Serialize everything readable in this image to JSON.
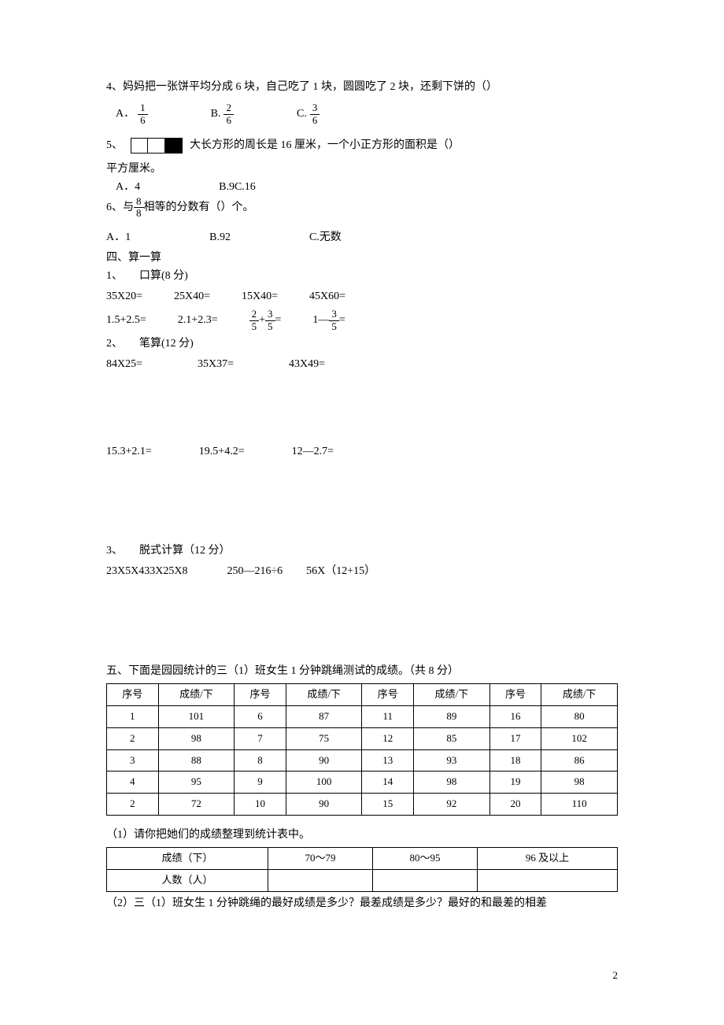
{
  "q4": {
    "text": "4、妈妈把一张饼平均分成 6 块，自己吃了 1 块，圆圆吃了 2 块，还剩下饼的（）",
    "A_label": "A．",
    "A_num": "1",
    "A_den": "6",
    "B_label": "B.",
    "B_num": "2",
    "B_den": "6",
    "C_label": "C.",
    "C_num": "3",
    "C_den": "6"
  },
  "q5": {
    "prefix": "5、",
    "suffix": "大长方形的周长是 16 厘米，一个小正方形的面积是（）",
    "unit": "平方厘米。",
    "A": "A．4",
    "B": "B.9",
    "C": "C.16"
  },
  "q6": {
    "prefix": "6、与",
    "num": "8",
    "den": "8",
    "suffix": "相等的分数有（）个。",
    "A": "A．1",
    "B": "B.92",
    "C": "C.无数"
  },
  "sec4": {
    "title": "四、算一算",
    "sub1": "1、　　口算(8 分)",
    "row1": {
      "a": "35X20=",
      "b": "25X40=",
      "c": "15X40=",
      "d": "45X60="
    },
    "row2": {
      "a": "1.5+2.5=",
      "b": "2.1+2.3=",
      "c_n1": "2",
      "c_d1": "5",
      "c_op": "+",
      "c_n2": "3",
      "c_d2": "5",
      "c_eq": "=",
      "d_pre": "1—",
      "d_num": "3",
      "d_den": "5",
      "d_eq": "="
    },
    "sub2": "2、　　笔算(12 分)",
    "row3": {
      "a": "84X25=",
      "b": "35X37=",
      "c": "43X49="
    },
    "row4": {
      "a": "15.3+2.1=",
      "b": "19.5+4.2=",
      "c": "12—2.7="
    },
    "sub3": "3、　　脱式计算（12 分）",
    "row5": {
      "a": "23X5X4",
      "b": "33X25X8",
      "c": "250—216÷6",
      "d": "56X（12+15）"
    }
  },
  "sec5": {
    "title": "五、下面是园园统计的三（1）班女生 1 分钟跳绳测试的成绩。（共 8 分）",
    "headers": [
      "序号",
      "成绩/下",
      "序号",
      "成绩/下",
      "序号",
      "成绩/下",
      "序号",
      "成绩/下"
    ],
    "rows": [
      [
        "1",
        "101",
        "6",
        "87",
        "11",
        "89",
        "16",
        "80"
      ],
      [
        "2",
        "98",
        "7",
        "75",
        "12",
        "85",
        "17",
        "102"
      ],
      [
        "3",
        "88",
        "8",
        "90",
        "13",
        "93",
        "18",
        "86"
      ],
      [
        "4",
        "95",
        "9",
        "100",
        "14",
        "98",
        "19",
        "98"
      ],
      [
        "2",
        "72",
        "10",
        "90",
        "15",
        "92",
        "20",
        "110"
      ]
    ],
    "sub1": "（1）请你把她们的成绩整理到统计表中。",
    "t2_headers": [
      "成绩（下）",
      "70～79",
      "80～95",
      "96 及以上"
    ],
    "t2_row": [
      "人数（人）",
      "",
      "",
      ""
    ],
    "sub2": "（2）三（1）班女生 1 分钟跳绳的最好成绩是多少？最差成绩是多少？最好的和最差的相差"
  },
  "page": "2"
}
